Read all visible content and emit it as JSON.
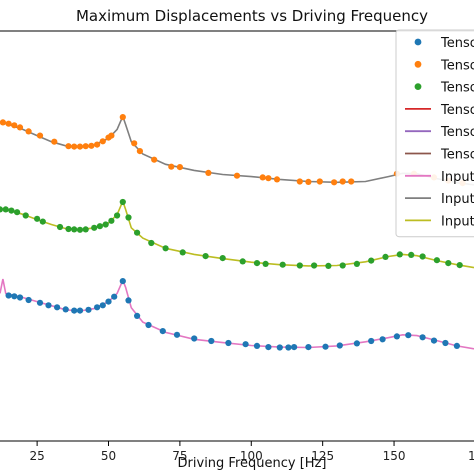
{
  "chart_data": {
    "type": "line",
    "title": "Maximum Displacements vs Driving Frequency",
    "xlabel": "Driving Frequency [Hz]",
    "ylabel": "",
    "xlim": [
      12,
      178
    ],
    "ylim": [
      0,
      1
    ],
    "x_ticks": [
      25,
      50,
      75,
      100,
      125,
      150
    ],
    "tick_labels": [
      "25",
      "50",
      "75",
      "100",
      "125",
      "150",
      "1"
    ],
    "grid": false,
    "legend": {
      "position": "top-right",
      "entries": [
        {
          "label": "Tenso",
          "kind": "marker",
          "color": "#1f77b4"
        },
        {
          "label": "Tenso",
          "kind": "marker",
          "color": "#ff7f0e"
        },
        {
          "label": "Tenso",
          "kind": "marker",
          "color": "#2ca02c"
        },
        {
          "label": "Tenso",
          "kind": "line",
          "color": "#d62728"
        },
        {
          "label": "Tenso",
          "kind": "line",
          "color": "#9467bd"
        },
        {
          "label": "Tenso",
          "kind": "line",
          "color": "#8c564b"
        },
        {
          "label": "Input",
          "kind": "line",
          "color": "#e377c2"
        },
        {
          "label": "Input",
          "kind": "line",
          "color": "#7f7f7f"
        },
        {
          "label": "Input",
          "kind": "line",
          "color": "#bcbd22"
        }
      ]
    },
    "series": [
      {
        "marker_color": "#ff7f0e",
        "line_color": "#7f7f7f",
        "line": [
          [
            12,
            0.778
          ],
          [
            15,
            0.772
          ],
          [
            20,
            0.76
          ],
          [
            25,
            0.745
          ],
          [
            30,
            0.73
          ],
          [
            35,
            0.72
          ],
          [
            40,
            0.717
          ],
          [
            45,
            0.722
          ],
          [
            50,
            0.738
          ],
          [
            53,
            0.76
          ],
          [
            55,
            0.792
          ],
          [
            56,
            0.772
          ],
          [
            58,
            0.73
          ],
          [
            62,
            0.7
          ],
          [
            70,
            0.675
          ],
          [
            80,
            0.66
          ],
          [
            90,
            0.65
          ],
          [
            100,
            0.645
          ],
          [
            110,
            0.638
          ],
          [
            120,
            0.633
          ],
          [
            130,
            0.631
          ],
          [
            140,
            0.633
          ],
          [
            148,
            0.645
          ],
          [
            153,
            0.653
          ],
          [
            158,
            0.652
          ],
          [
            165,
            0.64
          ],
          [
            172,
            0.63
          ],
          [
            178,
            0.625
          ]
        ],
        "points": [
          [
            13,
            0.777
          ],
          [
            15,
            0.774
          ],
          [
            17,
            0.77
          ],
          [
            19,
            0.765
          ],
          [
            22,
            0.755
          ],
          [
            26,
            0.745
          ],
          [
            31,
            0.73
          ],
          [
            36,
            0.719
          ],
          [
            38,
            0.718
          ],
          [
            40,
            0.718
          ],
          [
            42,
            0.719
          ],
          [
            44,
            0.72
          ],
          [
            46,
            0.723
          ],
          [
            48,
            0.731
          ],
          [
            50,
            0.74
          ],
          [
            51,
            0.745
          ],
          [
            55,
            0.79
          ],
          [
            59,
            0.726
          ],
          [
            61,
            0.707
          ],
          [
            66,
            0.686
          ],
          [
            72,
            0.669
          ],
          [
            75,
            0.668
          ],
          [
            85,
            0.654
          ],
          [
            95,
            0.647
          ],
          [
            104,
            0.643
          ],
          [
            106,
            0.641
          ],
          [
            109,
            0.638
          ],
          [
            117,
            0.633
          ],
          [
            120,
            0.632
          ],
          [
            124,
            0.633
          ],
          [
            129,
            0.631
          ],
          [
            132,
            0.633
          ],
          [
            135,
            0.633
          ],
          [
            151,
            0.652
          ],
          [
            157,
            0.652
          ],
          [
            164,
            0.643
          ],
          [
            169,
            0.635
          ],
          [
            174,
            0.629
          ]
        ]
      },
      {
        "marker_color": "#2ca02c",
        "line_color": "#bcbd22",
        "line": [
          [
            12,
            0.565
          ],
          [
            15,
            0.563
          ],
          [
            20,
            0.553
          ],
          [
            25,
            0.54
          ],
          [
            30,
            0.528
          ],
          [
            35,
            0.518
          ],
          [
            40,
            0.515
          ],
          [
            45,
            0.52
          ],
          [
            50,
            0.532
          ],
          [
            53,
            0.552
          ],
          [
            55,
            0.585
          ],
          [
            56,
            0.565
          ],
          [
            58,
            0.52
          ],
          [
            62,
            0.495
          ],
          [
            70,
            0.47
          ],
          [
            80,
            0.455
          ],
          [
            90,
            0.445
          ],
          [
            100,
            0.436
          ],
          [
            110,
            0.43
          ],
          [
            120,
            0.427
          ],
          [
            130,
            0.428
          ],
          [
            140,
            0.437
          ],
          [
            148,
            0.45
          ],
          [
            153,
            0.455
          ],
          [
            158,
            0.452
          ],
          [
            165,
            0.44
          ],
          [
            172,
            0.43
          ],
          [
            178,
            0.423
          ]
        ],
        "points": [
          [
            12,
            0.565
          ],
          [
            14,
            0.565
          ],
          [
            16,
            0.562
          ],
          [
            18,
            0.558
          ],
          [
            21,
            0.55
          ],
          [
            25,
            0.542
          ],
          [
            27,
            0.535
          ],
          [
            33,
            0.522
          ],
          [
            36,
            0.517
          ],
          [
            38,
            0.516
          ],
          [
            40,
            0.515
          ],
          [
            42,
            0.516
          ],
          [
            45,
            0.52
          ],
          [
            47,
            0.524
          ],
          [
            49,
            0.528
          ],
          [
            51,
            0.537
          ],
          [
            53,
            0.55
          ],
          [
            55,
            0.583
          ],
          [
            57,
            0.545
          ],
          [
            60,
            0.508
          ],
          [
            65,
            0.483
          ],
          [
            70,
            0.47
          ],
          [
            76,
            0.46
          ],
          [
            84,
            0.451
          ],
          [
            90,
            0.446
          ],
          [
            97,
            0.438
          ],
          [
            102,
            0.434
          ],
          [
            105,
            0.432
          ],
          [
            111,
            0.43
          ],
          [
            117,
            0.428
          ],
          [
            122,
            0.428
          ],
          [
            127,
            0.427
          ],
          [
            132,
            0.428
          ],
          [
            137,
            0.432
          ],
          [
            142,
            0.44
          ],
          [
            147,
            0.449
          ],
          [
            152,
            0.455
          ],
          [
            156,
            0.454
          ],
          [
            160,
            0.45
          ],
          [
            165,
            0.441
          ],
          [
            169,
            0.434
          ],
          [
            173,
            0.429
          ]
        ]
      },
      {
        "marker_color": "#1f77b4",
        "line_color": "#e377c2",
        "line": [
          [
            12,
            0.36
          ],
          [
            13,
            0.395
          ],
          [
            14,
            0.36
          ],
          [
            17,
            0.355
          ],
          [
            20,
            0.35
          ],
          [
            25,
            0.34
          ],
          [
            30,
            0.33
          ],
          [
            35,
            0.32
          ],
          [
            40,
            0.317
          ],
          [
            45,
            0.323
          ],
          [
            50,
            0.34
          ],
          [
            53,
            0.36
          ],
          [
            55,
            0.392
          ],
          [
            56,
            0.375
          ],
          [
            58,
            0.325
          ],
          [
            62,
            0.29
          ],
          [
            70,
            0.265
          ],
          [
            80,
            0.248
          ],
          [
            90,
            0.24
          ],
          [
            100,
            0.233
          ],
          [
            110,
            0.229
          ],
          [
            120,
            0.228
          ],
          [
            130,
            0.232
          ],
          [
            140,
            0.242
          ],
          [
            148,
            0.252
          ],
          [
            153,
            0.259
          ],
          [
            158,
            0.257
          ],
          [
            165,
            0.245
          ],
          [
            172,
            0.232
          ],
          [
            178,
            0.225
          ]
        ],
        "points": [
          [
            15,
            0.355
          ],
          [
            17,
            0.353
          ],
          [
            19,
            0.35
          ],
          [
            22,
            0.344
          ],
          [
            26,
            0.337
          ],
          [
            29,
            0.331
          ],
          [
            32,
            0.326
          ],
          [
            35,
            0.321
          ],
          [
            38,
            0.318
          ],
          [
            40,
            0.318
          ],
          [
            43,
            0.32
          ],
          [
            46,
            0.326
          ],
          [
            48,
            0.331
          ],
          [
            50,
            0.34
          ],
          [
            52,
            0.352
          ],
          [
            55,
            0.39
          ],
          [
            57,
            0.343
          ],
          [
            60,
            0.305
          ],
          [
            64,
            0.283
          ],
          [
            69,
            0.268
          ],
          [
            74,
            0.259
          ],
          [
            80,
            0.25
          ],
          [
            86,
            0.244
          ],
          [
            92,
            0.239
          ],
          [
            98,
            0.236
          ],
          [
            102,
            0.232
          ],
          [
            106,
            0.229
          ],
          [
            110,
            0.228
          ],
          [
            113,
            0.228
          ],
          [
            115,
            0.229
          ],
          [
            120,
            0.229
          ],
          [
            126,
            0.23
          ],
          [
            131,
            0.233
          ],
          [
            137,
            0.238
          ],
          [
            142,
            0.244
          ],
          [
            146,
            0.248
          ],
          [
            151,
            0.255
          ],
          [
            155,
            0.258
          ],
          [
            160,
            0.253
          ],
          [
            164,
            0.245
          ],
          [
            168,
            0.239
          ],
          [
            172,
            0.232
          ]
        ]
      }
    ]
  }
}
